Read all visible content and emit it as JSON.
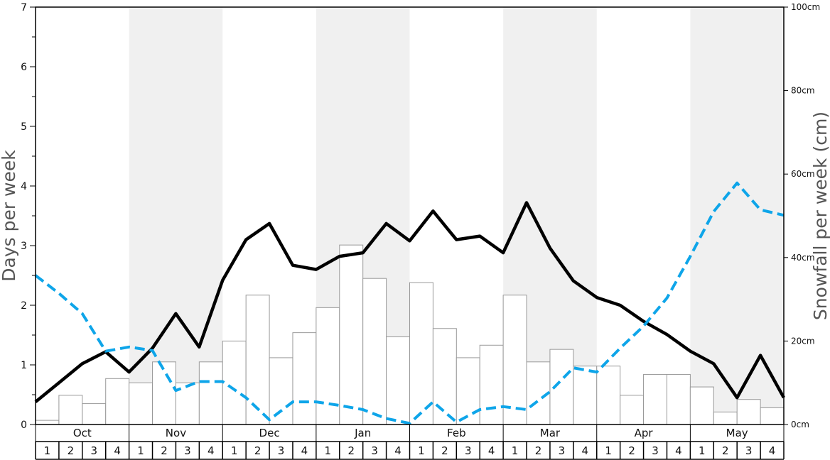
{
  "chart_data": {
    "type": "bar",
    "title": "",
    "ylabel_left": "Days per week",
    "ylabel_right": "Snowfall per week (cm)",
    "ylim_left": [
      0,
      7
    ],
    "ylim_right": [
      0,
      100
    ],
    "left_ticks": [
      "0",
      "1",
      "2",
      "3",
      "4",
      "5",
      "6",
      "7"
    ],
    "right_ticks": [
      "0cm",
      "20cm",
      "40cm",
      "60cm",
      "80cm",
      "100cm"
    ],
    "months": [
      "Oct",
      "Nov",
      "Dec",
      "Jan",
      "Feb",
      "Mar",
      "Apr",
      "May"
    ],
    "weeks": [
      "1",
      "2",
      "3",
      "4"
    ],
    "shaded_months": [
      "Nov",
      "Jan",
      "Mar",
      "May"
    ],
    "colors": {
      "bars": "#ffffff",
      "bar_edge": "#999999",
      "solid_line": "#000000",
      "dashed_line": "#0ea5e9",
      "shade": "#f0f0f0"
    },
    "grid": false,
    "series": [
      {
        "type": "bar",
        "axis": "right",
        "values": [
          1,
          7,
          5,
          11,
          10,
          15,
          10,
          15,
          20,
          31,
          16,
          22,
          28,
          43,
          35,
          21,
          34,
          23,
          16,
          19,
          31,
          15,
          18,
          14,
          14,
          7,
          12,
          12,
          9,
          3,
          6,
          4
        ]
      },
      {
        "type": "line",
        "style": "solid",
        "axis": "left",
        "values": [
          0.38,
          0.7,
          1.02,
          1.22,
          0.88,
          1.28,
          1.86,
          1.3,
          2.42,
          3.1,
          3.37,
          2.67,
          2.6,
          2.82,
          2.88,
          3.37,
          3.08,
          3.58,
          3.1,
          3.16,
          2.88,
          3.72,
          2.96,
          2.41,
          2.13,
          2.0,
          1.73,
          1.51,
          1.23,
          1.02,
          0.45,
          1.16,
          0.45
        ]
      },
      {
        "type": "line",
        "style": "dashed",
        "axis": "left",
        "values": [
          2.5,
          2.2,
          1.86,
          1.23,
          1.3,
          1.24,
          0.57,
          0.72,
          0.72,
          0.45,
          0.08,
          0.38,
          0.38,
          0.32,
          0.25,
          0.1,
          0.02,
          0.38,
          0.04,
          0.25,
          0.3,
          0.25,
          0.55,
          0.95,
          0.88,
          1.28,
          1.65,
          2.12,
          2.82,
          3.57,
          4.05,
          3.6,
          3.51
        ]
      }
    ]
  }
}
